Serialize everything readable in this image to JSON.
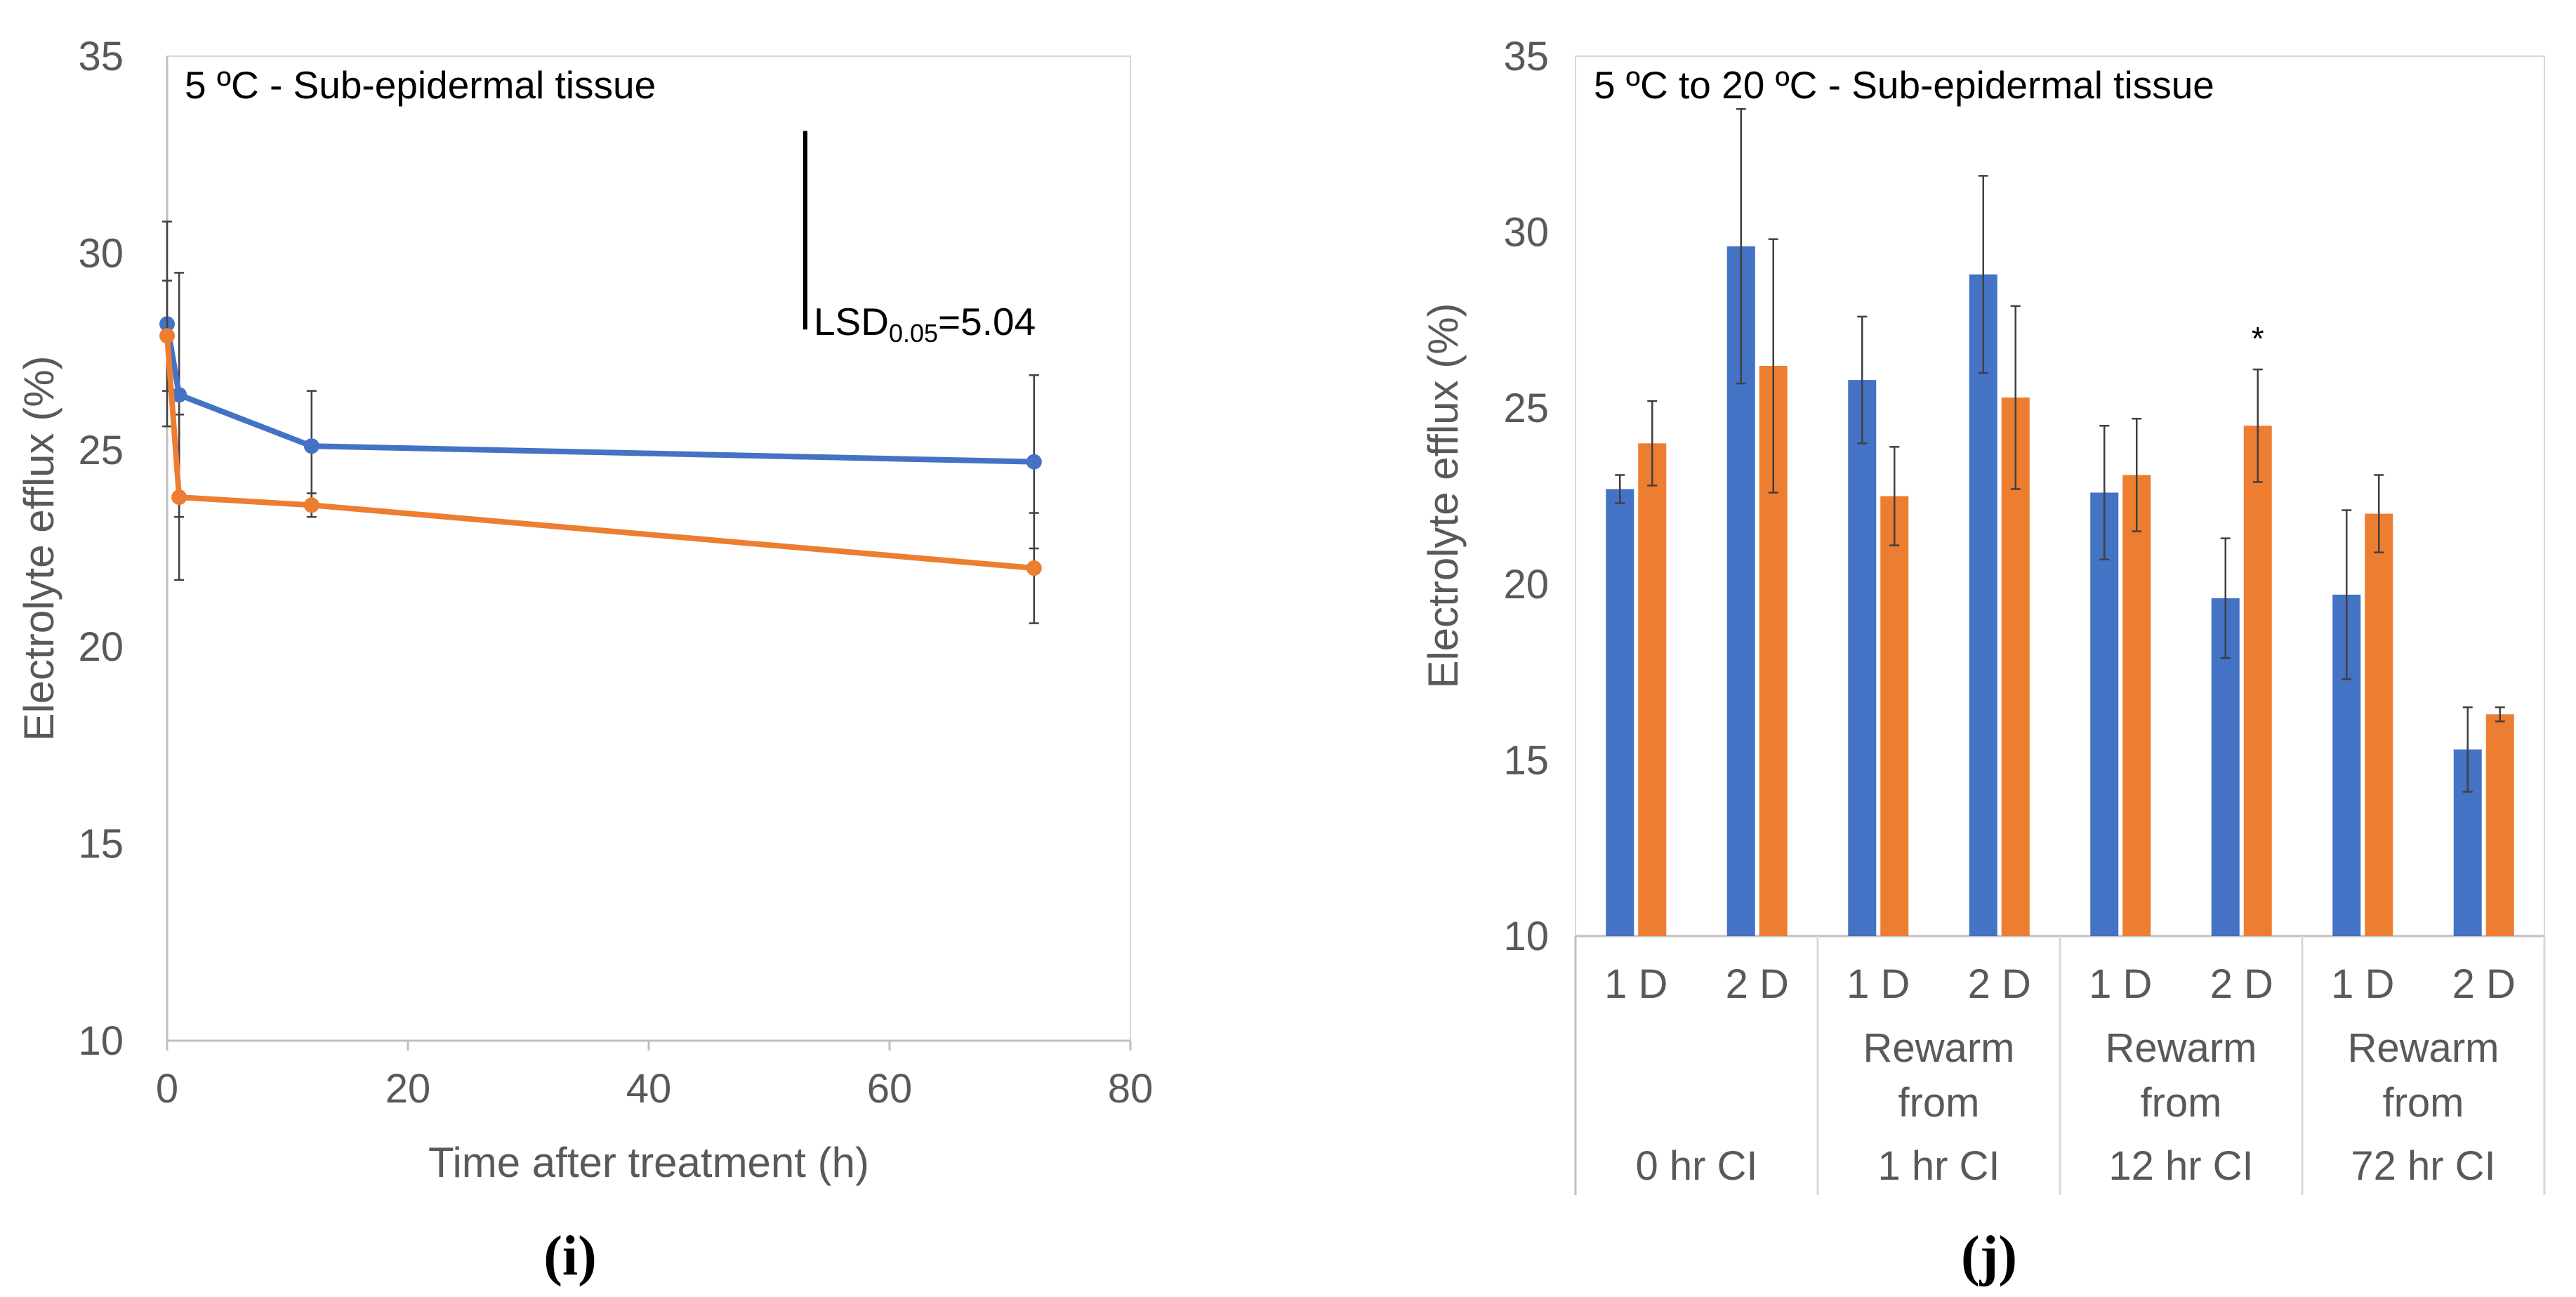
{
  "chart_data": [
    {
      "type": "line",
      "panel_label": "(i)",
      "title": "5 ºC - Sub-epidermal tissue",
      "xlabel": "Time after treatment (h)",
      "ylabel": "Electrolyte efflux (%)",
      "xlim": [
        0,
        80
      ],
      "ylim": [
        10,
        35
      ],
      "x_ticks": [
        0,
        20,
        40,
        60,
        80
      ],
      "y_ticks": [
        10,
        15,
        20,
        25,
        30,
        35
      ],
      "x_tick_labels": [
        "0",
        "20",
        "40",
        "60",
        "80"
      ],
      "y_tick_labels": [
        "10",
        "15",
        "20",
        "25",
        "30",
        "35"
      ],
      "grid": false,
      "lsd": {
        "label": "LSD",
        "subscript": "0.05",
        "suffix": "=5.04",
        "value": 5.04,
        "x": 53,
        "y_top": 33.1
      },
      "series": [
        {
          "name": "series-blue",
          "color": "#4472C4",
          "x": [
            0,
            1,
            12,
            72
          ],
          "y": [
            28.2,
            26.4,
            25.1,
            24.7
          ],
          "err": [
            2.6,
            3.1,
            1.4,
            2.2
          ]
        },
        {
          "name": "series-orange",
          "color": "#ED7D31",
          "x": [
            0,
            1,
            12,
            72
          ],
          "y": [
            27.9,
            23.8,
            23.6,
            22.0
          ],
          "err": [
            1.4,
            2.1,
            0.3,
            1.4
          ]
        }
      ]
    },
    {
      "type": "bar",
      "panel_label": "(j)",
      "title": "5 ºC to 20 ºC - Sub-epidermal tissue",
      "ylabel": "Electrolyte efflux (%)",
      "ylim": [
        10,
        35
      ],
      "y_ticks": [
        10,
        15,
        20,
        25,
        30,
        35
      ],
      "y_tick_labels": [
        "10",
        "15",
        "20",
        "25",
        "30",
        "35"
      ],
      "grid": false,
      "categories": [
        "1 D",
        "2 D",
        "1 D",
        "2 D",
        "1 D",
        "2 D",
        "1 D",
        "2 D"
      ],
      "groups": [
        {
          "lines": [
            "0 hr CI"
          ]
        },
        {
          "lines": [
            "Rewarm",
            "from",
            "1 hr CI"
          ]
        },
        {
          "lines": [
            "Rewarm",
            "from",
            "12 hr CI"
          ]
        },
        {
          "lines": [
            "Rewarm",
            "from",
            "72 hr CI"
          ]
        }
      ],
      "annotations": [
        {
          "text": "*",
          "category_index": 5,
          "series_index": 1
        }
      ],
      "series": [
        {
          "name": "series-blue",
          "color": "#4472C4",
          "values": [
            22.7,
            29.6,
            25.8,
            28.8,
            22.6,
            19.6,
            19.7,
            15.3
          ],
          "err": [
            0.4,
            3.9,
            1.8,
            2.8,
            1.9,
            1.7,
            2.4,
            1.2
          ]
        },
        {
          "name": "series-orange",
          "color": "#ED7D31",
          "values": [
            24.0,
            26.2,
            22.5,
            25.3,
            23.1,
            24.5,
            22.0,
            16.3
          ],
          "err": [
            1.2,
            3.6,
            1.4,
            2.6,
            1.6,
            1.6,
            1.1,
            0.2
          ]
        }
      ]
    }
  ]
}
